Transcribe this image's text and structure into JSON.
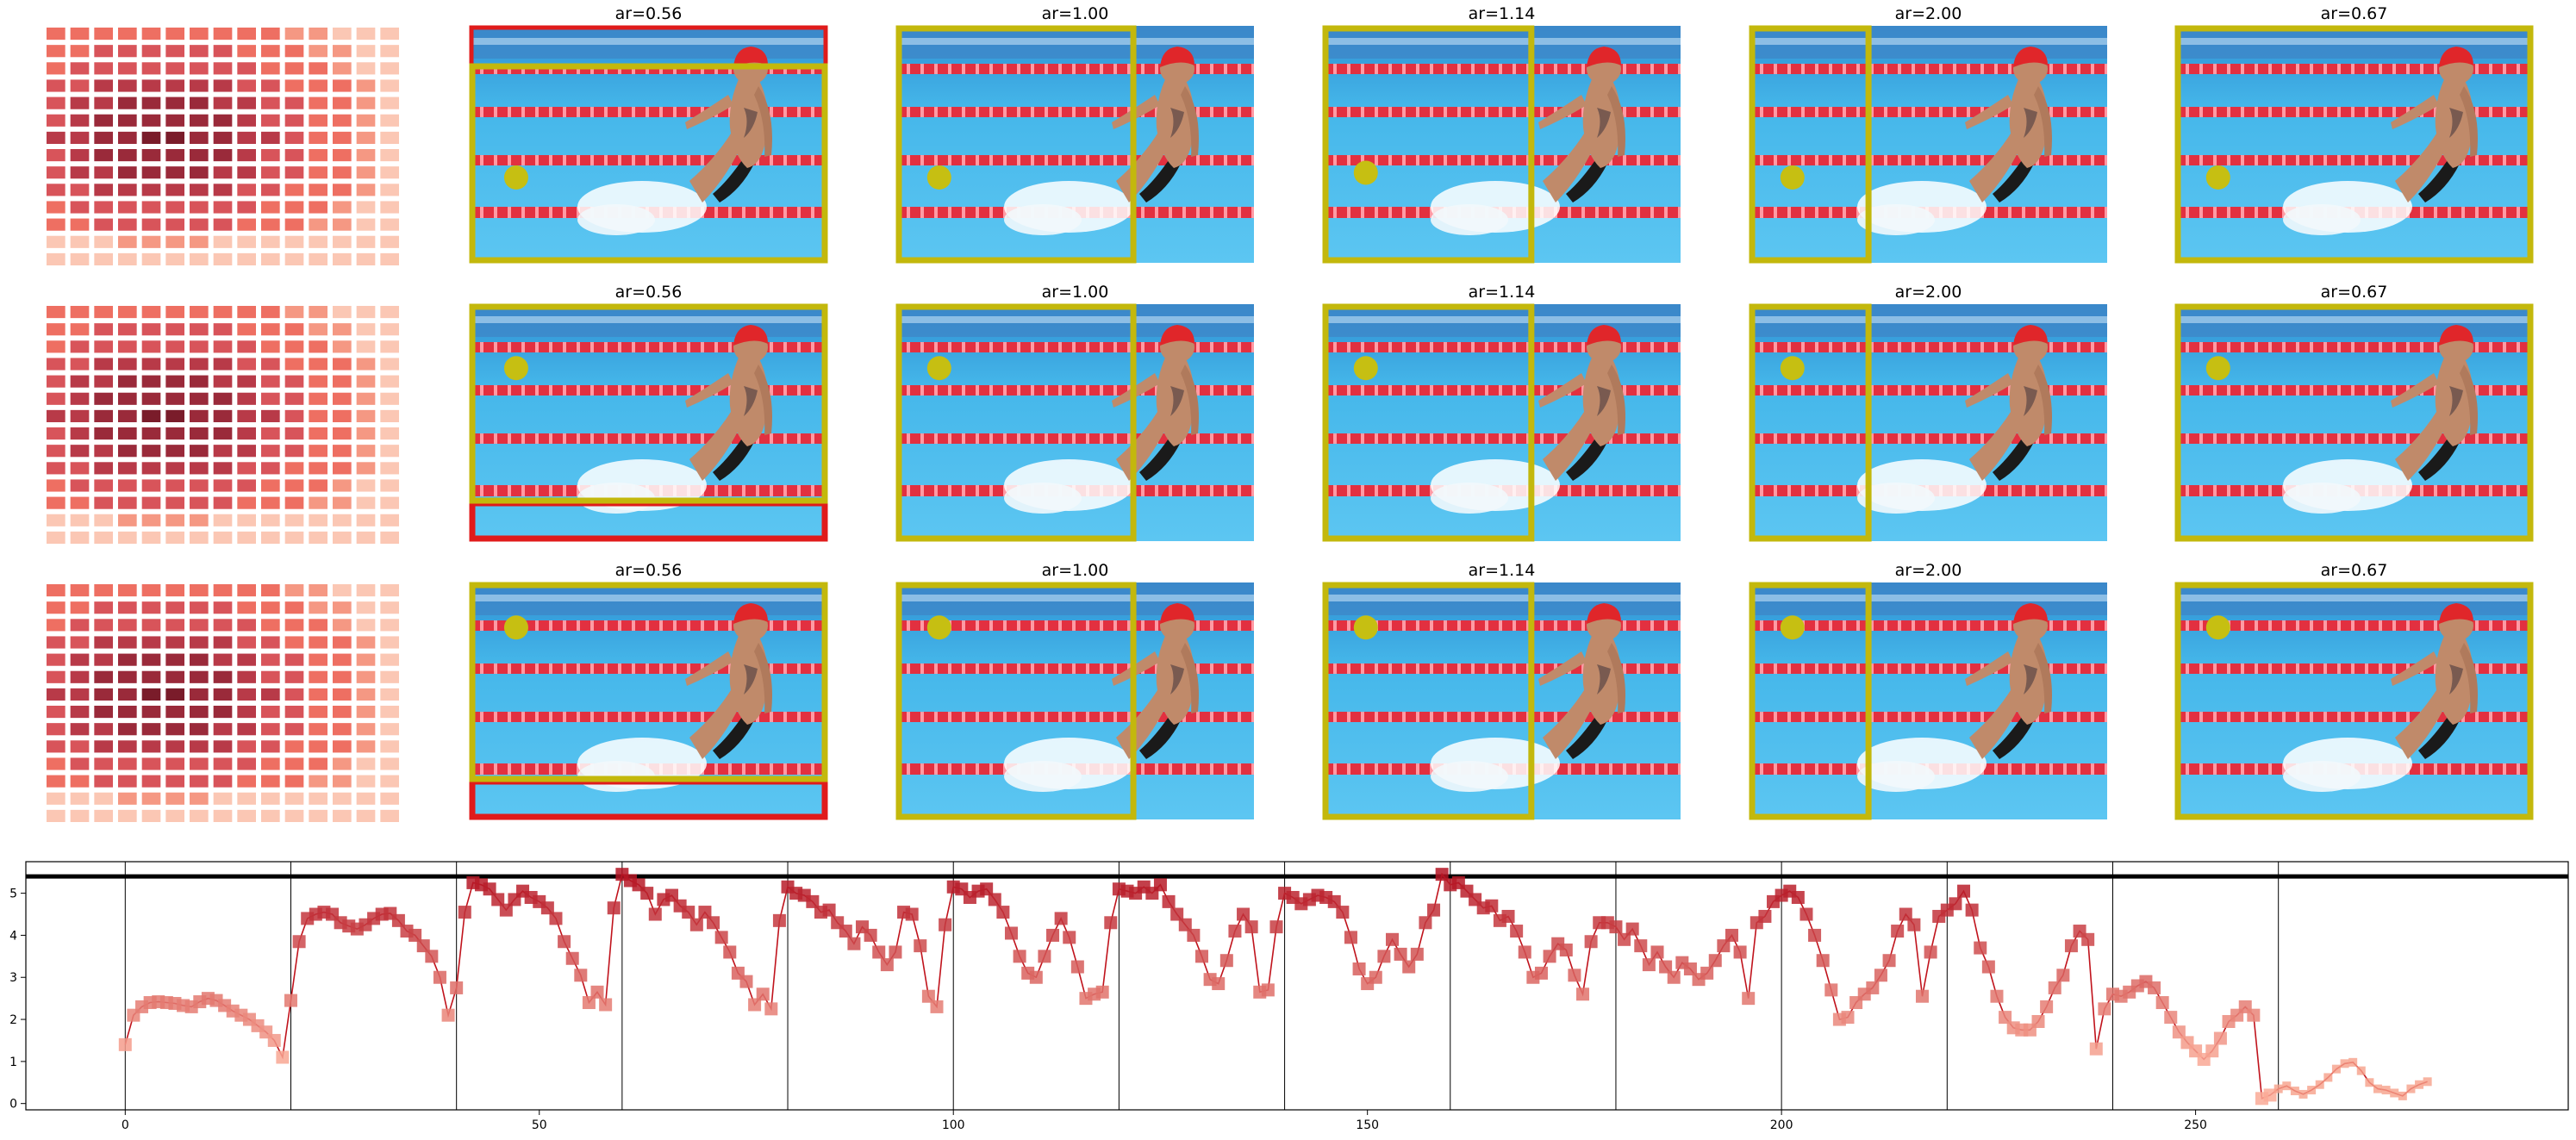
{
  "panel_titles": [
    [
      "ar=0.56",
      "ar=1.00",
      "ar=1.14",
      "ar=2.00",
      "ar=0.67"
    ],
    [
      "ar=0.56",
      "ar=1.00",
      "ar=1.14",
      "ar=2.00",
      "ar=0.67"
    ],
    [
      "ar=0.56",
      "ar=1.00",
      "ar=1.14",
      "ar=2.00",
      "ar=0.67"
    ]
  ],
  "colors": {
    "box_primary": "#c3b80c",
    "box_secondary": "#e01b1b",
    "marker_dot": "#c6bf12",
    "pool_water": "#3db0e6",
    "pool_deep": "#1f86c9",
    "lane_rope": "#e23040",
    "cap": "#e0262a",
    "skin": "#c08a6a",
    "heatmap_dark": "#7a1c2a",
    "heatmap_mid": "#d8545a",
    "heatmap_light": "#fbc7b4",
    "line": "#c0131c"
  },
  "chart_data": {
    "type": "line",
    "title": "",
    "xlabel": "",
    "ylabel": "",
    "xlim": [
      -12,
      295
    ],
    "ylim": [
      -0.15,
      5.75
    ],
    "xticks": [
      0,
      50,
      100,
      150,
      200,
      250
    ],
    "yticks": [
      0,
      1,
      2,
      3,
      4,
      5
    ],
    "grid": false,
    "reference_line_y": 5.4,
    "segment_boundaries": [
      0,
      20,
      40,
      60,
      80,
      100,
      120,
      140,
      160,
      180,
      200,
      220,
      240,
      260
    ],
    "series": [
      {
        "marker": "square",
        "values": [
          1.4,
          2.1,
          2.3,
          2.4,
          2.42,
          2.4,
          2.38,
          2.33,
          2.3,
          2.42,
          2.5,
          2.45,
          2.33,
          2.2,
          2.1,
          2.0,
          1.85,
          1.7,
          1.5,
          1.1,
          2.45,
          3.85,
          4.4,
          4.5,
          4.55,
          4.5,
          4.3,
          4.22,
          4.15,
          4.25,
          4.4,
          4.5,
          4.52,
          4.35,
          4.1,
          4.0,
          3.75,
          3.5,
          3.0,
          2.1,
          2.75,
          4.55,
          5.25,
          5.2,
          5.1,
          4.85,
          4.6,
          4.85,
          5.05,
          4.9,
          4.8,
          4.65,
          4.4,
          3.85,
          3.45,
          3.05,
          2.4,
          2.65,
          2.35,
          4.65,
          5.45,
          5.3,
          5.2,
          5.0,
          4.5,
          4.85,
          4.95,
          4.7,
          4.55,
          4.25,
          4.55,
          4.3,
          3.95,
          3.6,
          3.1,
          2.9,
          2.35,
          2.6,
          2.25,
          4.35,
          5.15,
          5.0,
          4.95,
          4.8,
          4.55,
          4.6,
          4.3,
          4.1,
          3.8,
          4.2,
          4.0,
          3.6,
          3.3,
          3.6,
          4.55,
          4.5,
          3.75,
          2.55,
          2.3,
          4.25,
          5.15,
          5.1,
          4.9,
          5.05,
          5.1,
          4.85,
          4.55,
          4.05,
          3.5,
          3.1,
          3.0,
          3.5,
          4.0,
          4.4,
          3.95,
          3.25,
          2.5,
          2.6,
          2.65,
          4.3,
          5.1,
          5.05,
          5.0,
          5.15,
          5.0,
          5.2,
          4.8,
          4.5,
          4.25,
          4.0,
          3.5,
          2.95,
          2.85,
          3.4,
          4.1,
          4.5,
          4.2,
          2.65,
          2.7,
          4.2,
          5.0,
          4.9,
          4.75,
          4.85,
          4.95,
          4.9,
          4.8,
          4.55,
          3.95,
          3.2,
          2.85,
          3.0,
          3.5,
          3.9,
          3.55,
          3.25,
          3.55,
          4.3,
          4.6,
          5.45,
          5.2,
          5.25,
          5.05,
          4.85,
          4.65,
          4.7,
          4.35,
          4.45,
          4.1,
          3.6,
          3.0,
          3.1,
          3.5,
          3.8,
          3.65,
          3.05,
          2.6,
          3.85,
          4.3,
          4.3,
          4.2,
          3.9,
          4.15,
          3.75,
          3.3,
          3.6,
          3.25,
          3.0,
          3.35,
          3.2,
          2.95,
          3.1,
          3.4,
          3.75,
          4.0,
          3.6,
          2.5,
          4.3,
          4.45,
          4.8,
          4.95,
          5.05,
          4.9,
          4.5,
          4.0,
          3.4,
          2.7,
          2.0,
          2.05,
          2.4,
          2.6,
          2.75,
          3.05,
          3.4,
          4.1,
          4.5,
          4.25,
          2.55,
          3.6,
          4.45,
          4.6,
          4.75,
          5.05,
          4.6,
          3.7,
          3.25,
          2.55,
          2.05,
          1.8,
          1.75,
          1.75,
          1.95,
          2.3,
          2.75,
          3.05,
          3.75,
          4.1,
          3.9,
          1.3,
          2.25,
          2.6,
          2.55,
          2.65,
          2.8,
          2.9,
          2.75,
          2.4,
          2.05,
          1.7,
          1.45,
          1.25,
          1.05,
          1.25,
          1.55,
          1.95,
          2.1,
          2.3,
          2.1,
          0.12,
          0.2,
          0.35,
          0.42,
          0.3,
          0.22,
          0.32,
          0.45,
          0.62,
          0.82,
          0.95,
          0.98,
          0.78,
          0.5,
          0.35,
          0.32,
          0.25,
          0.18,
          0.35,
          0.45,
          0.52
        ]
      }
    ]
  }
}
